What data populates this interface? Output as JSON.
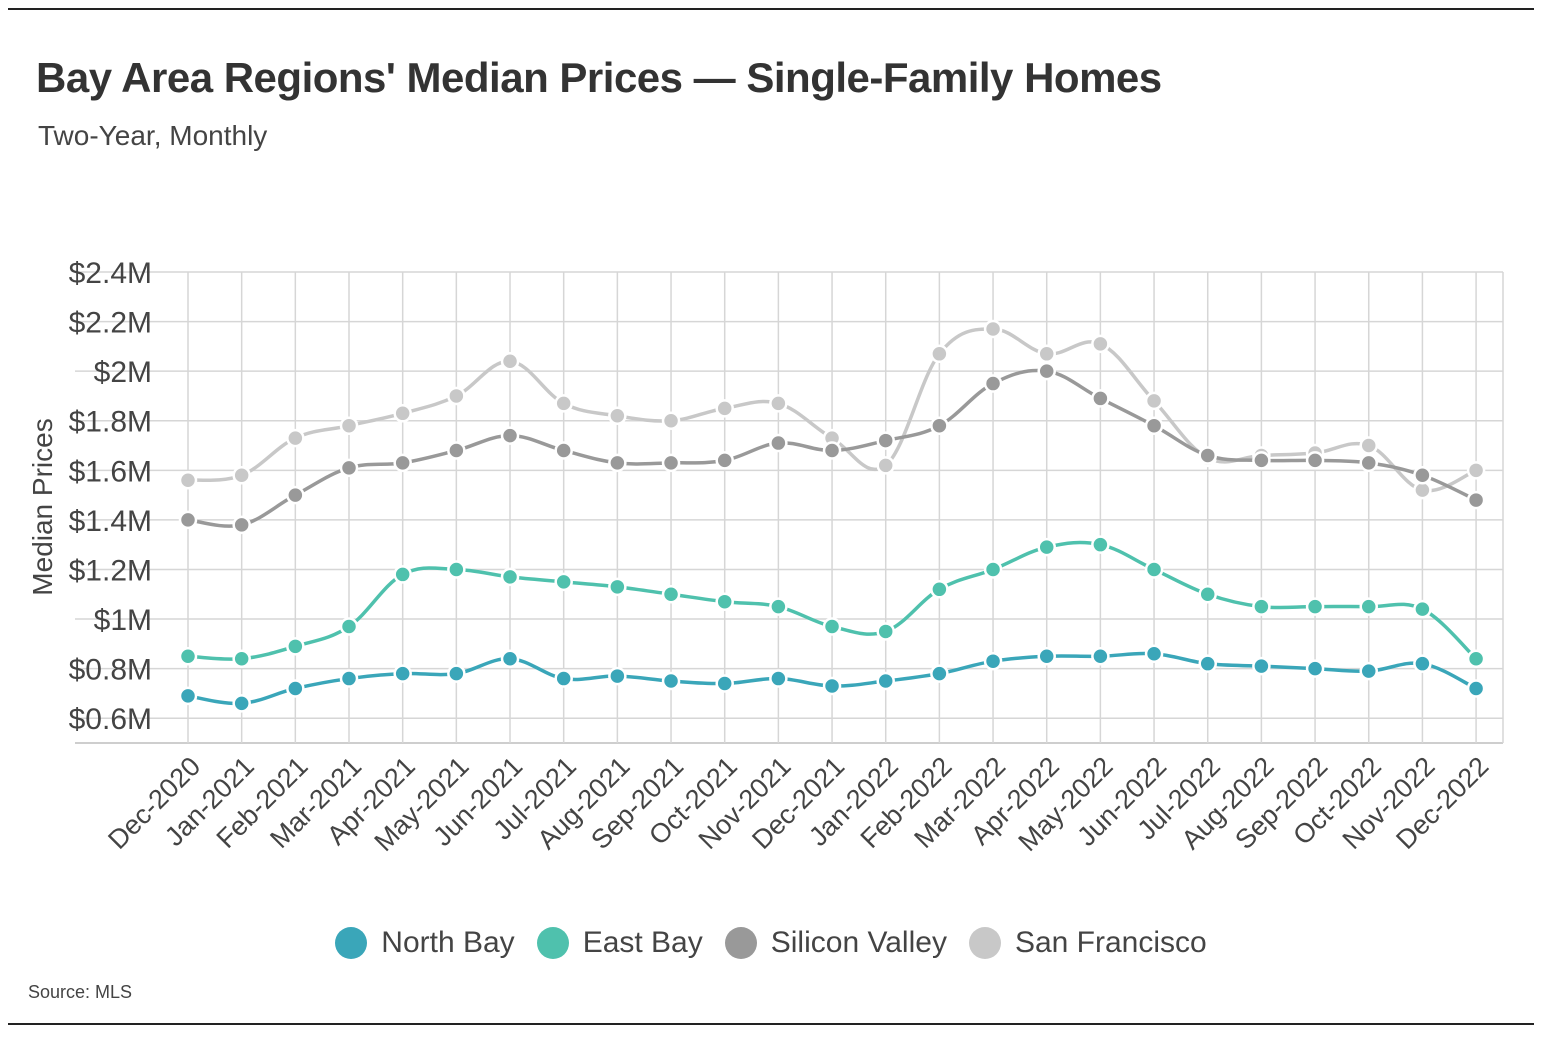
{
  "header": {
    "title": "Bay Area Regions' Median Prices — Single-Family Homes",
    "subtitle": "Two-Year, Monthly"
  },
  "footer": {
    "source": "Source: MLS"
  },
  "chart_data": {
    "type": "line",
    "title": "Bay Area Regions' Median Prices — Single-Family Homes",
    "subtitle": "Two-Year, Monthly",
    "xlabel": "",
    "ylabel": "Median Prices",
    "ylim": [
      0.5,
      2.4
    ],
    "yticks": [
      {
        "value": 0.6,
        "label": "$0.6M"
      },
      {
        "value": 0.8,
        "label": "$0.8M"
      },
      {
        "value": 1.0,
        "label": "$1M"
      },
      {
        "value": 1.2,
        "label": "$1.2M"
      },
      {
        "value": 1.4,
        "label": "$1.4M"
      },
      {
        "value": 1.6,
        "label": "$1.6M"
      },
      {
        "value": 1.8,
        "label": "$1.8M"
      },
      {
        "value": 2.0,
        "label": "$2M"
      },
      {
        "value": 2.2,
        "label": "$2.2M"
      },
      {
        "value": 2.4,
        "label": "$2.4M"
      }
    ],
    "categories": [
      "Dec-2020",
      "Jan-2021",
      "Feb-2021",
      "Mar-2021",
      "Apr-2021",
      "May-2021",
      "Jun-2021",
      "Jul-2021",
      "Aug-2021",
      "Sep-2021",
      "Oct-2021",
      "Nov-2021",
      "Dec-2021",
      "Jan-2022",
      "Feb-2022",
      "Mar-2022",
      "Apr-2022",
      "May-2022",
      "Jun-2022",
      "Jul-2022",
      "Aug-2022",
      "Sep-2022",
      "Oct-2022",
      "Nov-2022",
      "Dec-2022"
    ],
    "legend_position": "bottom-center",
    "grid": true,
    "series": [
      {
        "name": "North Bay",
        "color": "#3aa6b9",
        "values": [
          0.69,
          0.66,
          0.72,
          0.76,
          0.78,
          0.78,
          0.84,
          0.76,
          0.77,
          0.75,
          0.74,
          0.76,
          0.73,
          0.75,
          0.78,
          0.83,
          0.85,
          0.85,
          0.86,
          0.82,
          0.81,
          0.8,
          0.79,
          0.82,
          0.72
        ]
      },
      {
        "name": "East Bay",
        "color": "#4fc1ad",
        "values": [
          0.85,
          0.84,
          0.89,
          0.97,
          1.18,
          1.2,
          1.17,
          1.15,
          1.13,
          1.1,
          1.07,
          1.05,
          0.97,
          0.95,
          1.12,
          1.2,
          1.29,
          1.3,
          1.2,
          1.1,
          1.05,
          1.05,
          1.05,
          1.04,
          0.84
        ]
      },
      {
        "name": "Silicon Valley",
        "color": "#999999",
        "values": [
          1.4,
          1.38,
          1.5,
          1.61,
          1.63,
          1.68,
          1.74,
          1.68,
          1.63,
          1.63,
          1.64,
          1.71,
          1.68,
          1.72,
          1.78,
          1.95,
          2.0,
          1.89,
          1.78,
          1.66,
          1.64,
          1.64,
          1.63,
          1.58,
          1.48
        ]
      },
      {
        "name": "San Francisco",
        "color": "#c8c8c8",
        "values": [
          1.56,
          1.58,
          1.73,
          1.78,
          1.83,
          1.9,
          2.04,
          1.87,
          1.82,
          1.8,
          1.85,
          1.87,
          1.73,
          1.62,
          2.07,
          2.17,
          2.07,
          2.11,
          1.88,
          1.65,
          1.66,
          1.67,
          1.7,
          1.52,
          1.6
        ]
      }
    ]
  }
}
